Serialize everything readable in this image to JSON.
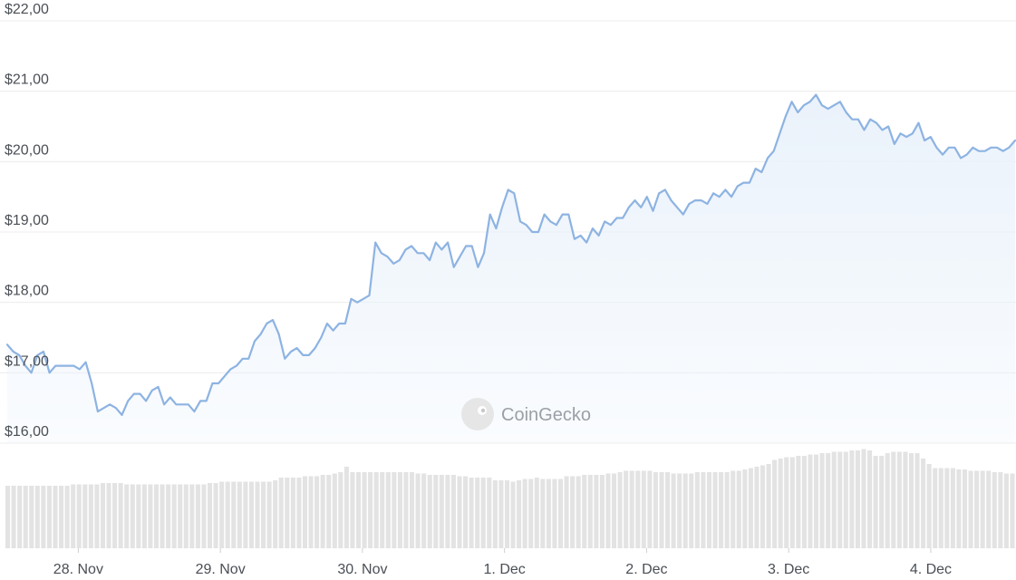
{
  "chart_data": {
    "type": "line",
    "title": "",
    "xlabel": "",
    "ylabel": "",
    "ylim": [
      16,
      22
    ],
    "yticks": [
      "$22,00",
      "$21,00",
      "$20,00",
      "$19,00",
      "$18,00",
      "$17,00",
      "$16,00"
    ],
    "xticks": [
      "28. Nov",
      "29. Nov",
      "30. Nov",
      "1. Dec",
      "2. Dec",
      "3. Dec",
      "4. Dec"
    ],
    "x_range_days": [
      -0.5,
      6.6
    ],
    "grid": true,
    "line_color": "#8db3e2",
    "area_color": "#eaf2fb",
    "volume_color": "#e3e3e3",
    "watermark": "CoinGecko",
    "series": [
      {
        "values": [
          17.4,
          17.3,
          17.25,
          17.1,
          17.0,
          17.25,
          17.3,
          17.0,
          17.1,
          17.1,
          17.1,
          17.1,
          17.05,
          17.15,
          16.85,
          16.45,
          16.5,
          16.55,
          16.5,
          16.4,
          16.6,
          16.7,
          16.7,
          16.6,
          16.75,
          16.8,
          16.55,
          16.65,
          16.55,
          16.55,
          16.55,
          16.45,
          16.6,
          16.6,
          16.85,
          16.85,
          16.95,
          17.05,
          17.1,
          17.2,
          17.2,
          17.45,
          17.55,
          17.7,
          17.75,
          17.55,
          17.2,
          17.3,
          17.35,
          17.25,
          17.25,
          17.35,
          17.5,
          17.7,
          17.6,
          17.7,
          17.7,
          18.05,
          18.0,
          18.05,
          18.1,
          18.85,
          18.7,
          18.65,
          18.55,
          18.6,
          18.75,
          18.8,
          18.7,
          18.7,
          18.6,
          18.85,
          18.75,
          18.85,
          18.5,
          18.65,
          18.8,
          18.8,
          18.5,
          18.7,
          19.25,
          19.05,
          19.35,
          19.6,
          19.55,
          19.15,
          19.1,
          19.0,
          19.0,
          19.25,
          19.15,
          19.1,
          19.25,
          19.25,
          18.9,
          18.95,
          18.85,
          19.05,
          18.95,
          19.15,
          19.1,
          19.2,
          19.2,
          19.35,
          19.45,
          19.35,
          19.5,
          19.3,
          19.55,
          19.6,
          19.45,
          19.35,
          19.25,
          19.4,
          19.45,
          19.45,
          19.4,
          19.55,
          19.5,
          19.6,
          19.5,
          19.65,
          19.7,
          19.7,
          19.9,
          19.85,
          20.05,
          20.15,
          20.4,
          20.65,
          20.85,
          20.7,
          20.8,
          20.85,
          20.95,
          20.8,
          20.75,
          20.8,
          20.85,
          20.7,
          20.6,
          20.6,
          20.45,
          20.6,
          20.55,
          20.45,
          20.5,
          20.25,
          20.4,
          20.35,
          20.4,
          20.55,
          20.3,
          20.35,
          20.2,
          20.1,
          20.2,
          20.2,
          20.05,
          20.1,
          20.2,
          20.15,
          20.15,
          20.2,
          20.2,
          20.15,
          20.2,
          20.3
        ]
      }
    ],
    "volume": [
      0.46,
      0.46,
      0.46,
      0.46,
      0.46,
      0.46,
      0.46,
      0.46,
      0.46,
      0.46,
      0.46,
      0.47,
      0.47,
      0.47,
      0.47,
      0.47,
      0.48,
      0.48,
      0.48,
      0.48,
      0.47,
      0.47,
      0.47,
      0.47,
      0.47,
      0.47,
      0.47,
      0.47,
      0.47,
      0.47,
      0.47,
      0.47,
      0.47,
      0.47,
      0.48,
      0.48,
      0.49,
      0.49,
      0.49,
      0.49,
      0.49,
      0.49,
      0.49,
      0.49,
      0.49,
      0.5,
      0.52,
      0.52,
      0.52,
      0.52,
      0.53,
      0.53,
      0.53,
      0.54,
      0.54,
      0.55,
      0.56,
      0.6,
      0.56,
      0.56,
      0.56,
      0.56,
      0.56,
      0.56,
      0.56,
      0.56,
      0.56,
      0.56,
      0.56,
      0.55,
      0.55,
      0.54,
      0.54,
      0.54,
      0.54,
      0.54,
      0.53,
      0.53,
      0.52,
      0.52,
      0.52,
      0.52,
      0.5,
      0.5,
      0.5,
      0.49,
      0.5,
      0.51,
      0.51,
      0.52,
      0.51,
      0.51,
      0.51,
      0.51,
      0.53,
      0.53,
      0.53,
      0.54,
      0.54,
      0.54,
      0.54,
      0.55,
      0.55,
      0.56,
      0.57,
      0.57,
      0.57,
      0.57,
      0.57,
      0.56,
      0.56,
      0.56,
      0.55,
      0.55,
      0.55,
      0.55,
      0.56,
      0.56,
      0.56,
      0.56,
      0.56,
      0.56,
      0.57,
      0.57,
      0.58,
      0.59,
      0.6,
      0.61,
      0.62,
      0.65,
      0.66,
      0.67,
      0.67,
      0.68,
      0.68,
      0.69,
      0.69,
      0.7,
      0.7,
      0.71,
      0.71,
      0.71,
      0.72,
      0.72,
      0.73,
      0.72,
      0.68,
      0.68,
      0.7,
      0.71,
      0.71,
      0.71,
      0.7,
      0.7,
      0.66,
      0.62,
      0.59,
      0.59,
      0.59,
      0.59,
      0.58,
      0.58,
      0.57,
      0.57,
      0.57,
      0.57,
      0.56,
      0.56,
      0.55,
      0.55
    ]
  }
}
